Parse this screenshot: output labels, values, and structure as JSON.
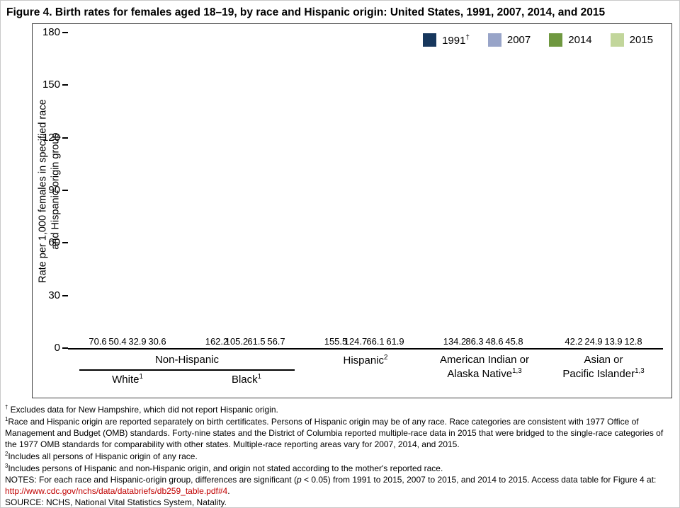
{
  "title": "Figure 4. Birth rates for females aged 18–19, by race and Hispanic origin: United States, 1991, 2007, 2014, and 2015",
  "chart_data": {
    "type": "bar",
    "title": "Figure 4. Birth rates for females aged 18–19, by race and Hispanic origin: United States, 1991, 2007, 2014, and 2015",
    "ylabel": "Rate per 1,000 females in specified race\nand Hispanic-origin group",
    "xlabel": "",
    "ylim": [
      0,
      180
    ],
    "yticks": [
      0,
      30,
      60,
      90,
      120,
      150,
      180
    ],
    "grid": false,
    "legend_position": "top-right",
    "group_bracket": {
      "label": "Non-Hispanic",
      "spans_categories": [
        "White",
        "Black"
      ]
    },
    "categories": [
      {
        "label": "White",
        "sup": "1"
      },
      {
        "label": "Black",
        "sup": "1"
      },
      {
        "label": "Hispanic",
        "sup": "2"
      },
      {
        "label": "American Indian or\nAlaska Native",
        "sup": "1,3"
      },
      {
        "label": "Asian or\nPacific Islander",
        "sup": "1,3"
      }
    ],
    "series": [
      {
        "name": "1991",
        "sup": "†",
        "color": "#17375D",
        "values": [
          70.6,
          162.2,
          155.5,
          134.2,
          42.2
        ]
      },
      {
        "name": "2007",
        "sup": "",
        "color": "#98A4C8",
        "values": [
          50.4,
          105.2,
          124.7,
          86.3,
          24.9
        ]
      },
      {
        "name": "2014",
        "sup": "",
        "color": "#6F9840",
        "values": [
          32.9,
          61.5,
          66.1,
          48.6,
          13.9
        ]
      },
      {
        "name": "2015",
        "sup": "",
        "color": "#C2D69B",
        "values": [
          30.6,
          56.7,
          61.9,
          45.8,
          12.8
        ]
      }
    ]
  },
  "footnotes": [
    {
      "parts": [
        {
          "t": "†",
          "style": "sup"
        },
        {
          "t": " Excludes data for New Hampshire, which did not report Hispanic origin.",
          "style": ""
        }
      ]
    },
    {
      "parts": [
        {
          "t": "1",
          "style": "sup"
        },
        {
          "t": "Race and Hispanic origin are reported separately on birth certificates. Persons of Hispanic origin may be of any race. Race categories are consistent with 1977 Office of Management and Budget (OMB) standards. Forty-nine states and the District of Columbia reported multiple-race data in 2015 that were bridged to the single-race categories of the 1977 OMB standards for comparability with other states. Multiple-race reporting areas vary for 2007, 2014, and 2015.",
          "style": ""
        }
      ]
    },
    {
      "parts": [
        {
          "t": "2",
          "style": "sup"
        },
        {
          "t": "Includes all persons of Hispanic origin of any race.",
          "style": ""
        }
      ]
    },
    {
      "parts": [
        {
          "t": "3",
          "style": "sup"
        },
        {
          "t": "Includes persons of Hispanic and non-Hispanic origin, and origin not stated according to the mother's reported race.",
          "style": ""
        }
      ]
    },
    {
      "parts": [
        {
          "t": "NOTES: For each race and Hispanic-origin group, differences are significant (",
          "style": ""
        },
        {
          "t": "p",
          "style": "italic"
        },
        {
          "t": " < 0.05) from 1991 to 2015, 2007 to 2015, and 2014 to 2015. Access data table for Figure 4 at: ",
          "style": ""
        },
        {
          "t": "http://www.cdc.gov/nchs/data/databriefs/db259_table.pdf#4",
          "style": "link"
        },
        {
          "t": ".",
          "style": ""
        }
      ]
    },
    {
      "parts": [
        {
          "t": "SOURCE: NCHS, National Vital Statistics System, Natality.",
          "style": ""
        }
      ]
    }
  ]
}
